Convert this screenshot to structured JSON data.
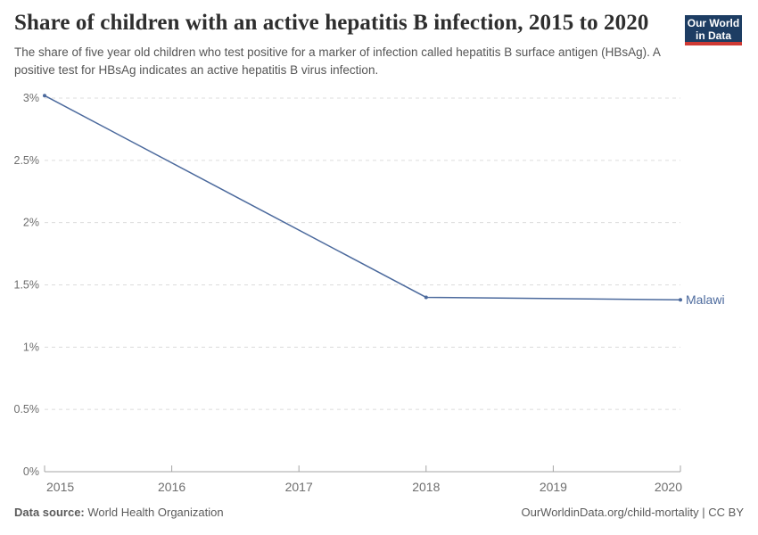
{
  "header": {
    "title": "Share of children with an active hepatitis B infection, 2015 to 2020",
    "subtitle": "The share of five year old children who test positive for a marker of infection called hepatitis B surface antigen (HBsAg). A positive test for HBsAg indicates an active hepatitis B virus infection."
  },
  "logo": {
    "line1": "Our World",
    "line2": "in Data",
    "bg_color": "#1d3d63",
    "stripe_color": "#cf3a34"
  },
  "chart_data": {
    "type": "line",
    "title": "Share of children with an active hepatitis B infection, 2015 to 2020",
    "series": [
      {
        "name": "Malawi",
        "x": [
          2015,
          2018,
          2020
        ],
        "values": [
          3.02,
          1.4,
          1.38
        ],
        "color": "#4c6a9d"
      }
    ],
    "x_ticks": [
      2015,
      2016,
      2017,
      2018,
      2019,
      2020
    ],
    "y_ticks": [
      {
        "value": 0,
        "label": "0%"
      },
      {
        "value": 0.5,
        "label": "0.5%"
      },
      {
        "value": 1,
        "label": "1%"
      },
      {
        "value": 1.5,
        "label": "1.5%"
      },
      {
        "value": 2,
        "label": "2%"
      },
      {
        "value": 2.5,
        "label": "2.5%"
      },
      {
        "value": 3,
        "label": "3%"
      }
    ],
    "xlim": [
      2015,
      2020
    ],
    "ylim": [
      0,
      3
    ],
    "grid": "horizontal-dashed",
    "legend_position": "end-of-line-label",
    "colors": {
      "gridline": "#dcdcdc",
      "axis": "#a5a5a5",
      "tick_label": "#6e6e6e"
    }
  },
  "footer": {
    "data_source_label": "Data source:",
    "data_source_value": "World Health Organization",
    "citation": "OurWorldinData.org/child-mortality | CC BY"
  }
}
